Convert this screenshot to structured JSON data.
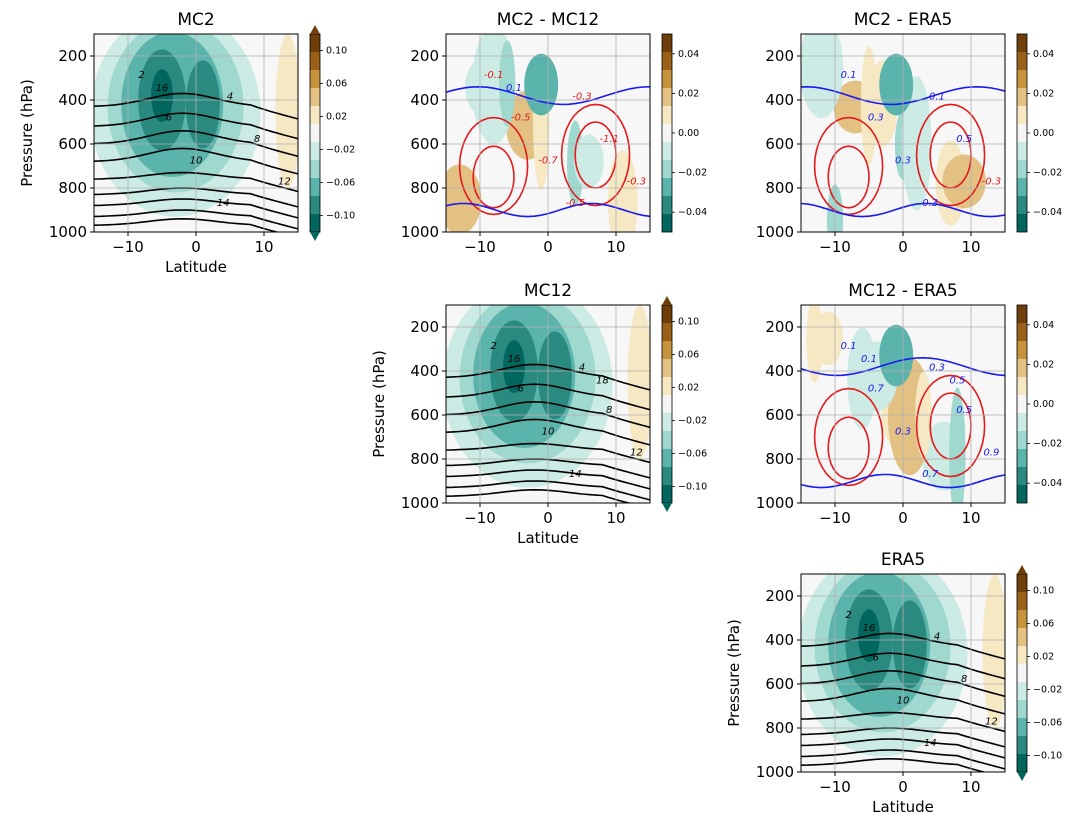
{
  "colors": {
    "neg": [
      "#01665e",
      "#2a8a7f",
      "#5ab4ac",
      "#9fd8ce",
      "#cbebe4",
      "#f5f5f5"
    ],
    "pos": [
      "#f5f5f5",
      "#f6e8c3",
      "#e2c182",
      "#c7933d",
      "#9b6018",
      "#6e3f0a"
    ],
    "contour_black": "#000000",
    "contour_red": "#e41a1c",
    "contour_blue": "#1a1aee"
  },
  "shared": {
    "y_ticks": [
      "200",
      "400",
      "600",
      "800",
      "1000"
    ],
    "x_ticks": [
      "−10",
      "0",
      "10"
    ],
    "xlabel": "Latitude",
    "ylabel": "Pressure (hPa)"
  },
  "colorbars": {
    "mean": [
      "0.10",
      "0.06",
      "0.02",
      "−0.02",
      "−0.06",
      "−0.10"
    ],
    "diff": [
      "0.04",
      "0.02",
      "0.00",
      "−0.02",
      "−0.04"
    ]
  },
  "chart_data": [
    {
      "id": "mc2",
      "title": "MC2",
      "type": "contourf",
      "x_range": [
        -15,
        15
      ],
      "y_range": [
        1000,
        100
      ],
      "y_inverted": true,
      "contour_labels": [
        "2",
        "4",
        "6",
        "8",
        "10",
        "12",
        "14",
        "16"
      ],
      "contour_color": "black",
      "colorbar": "mean"
    },
    {
      "id": "mc2-mc12",
      "title": "MC2 - MC12",
      "type": "contourf",
      "x_range": [
        -15,
        15
      ],
      "y_range": [
        1000,
        100
      ],
      "y_inverted": true,
      "contour_labels": [
        "-0.1",
        "-0.3",
        "-0.5",
        "-1.1",
        "-0.7",
        "-0.3",
        "-0.5",
        "0.1"
      ],
      "contour_color": "red/blue",
      "colorbar": "diff"
    },
    {
      "id": "mc2-era5",
      "title": "MC2 - ERA5",
      "type": "contourf",
      "x_range": [
        -15,
        15
      ],
      "y_range": [
        1000,
        100
      ],
      "y_inverted": true,
      "contour_labels": [
        "0.1",
        "0.1",
        "0.3",
        "0.5",
        "0.3",
        "-0.3",
        "0.3"
      ],
      "contour_color": "red/blue",
      "colorbar": "diff"
    },
    {
      "id": "mc12",
      "title": "MC12",
      "type": "contourf",
      "x_range": [
        -15,
        15
      ],
      "y_range": [
        1000,
        100
      ],
      "y_inverted": true,
      "contour_labels": [
        "2",
        "4",
        "6",
        "8",
        "10",
        "12",
        "14",
        "16",
        "18"
      ],
      "contour_color": "black",
      "colorbar": "mean"
    },
    {
      "id": "mc12-era5",
      "title": "MC12 - ERA5",
      "type": "contourf",
      "x_range": [
        -15,
        15
      ],
      "y_range": [
        1000,
        100
      ],
      "y_inverted": true,
      "contour_labels": [
        "0.1",
        "0.3",
        "0.7",
        "0.5",
        "0.3",
        "0.9",
        "0.7",
        "0.1",
        "0.5"
      ],
      "contour_color": "red/blue",
      "colorbar": "diff"
    },
    {
      "id": "era5",
      "title": "ERA5",
      "type": "contourf",
      "x_range": [
        -15,
        15
      ],
      "y_range": [
        1000,
        100
      ],
      "y_inverted": true,
      "contour_labels": [
        "2",
        "4",
        "6",
        "8",
        "10",
        "12",
        "14",
        "16"
      ],
      "contour_color": "black",
      "colorbar": "mean"
    }
  ]
}
